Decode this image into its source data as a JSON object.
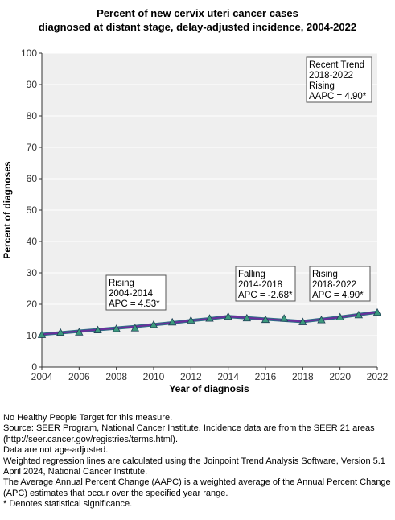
{
  "chart_data": {
    "type": "line",
    "title_line1": "Percent of new cervix uteri cancer cases",
    "title_line2": "diagnosed at distant stage, delay-adjusted incidence, 2004-2022",
    "xlabel": "Year of diagnosis",
    "ylabel": "Percent of diagnoses",
    "xlim": [
      2004,
      2022
    ],
    "ylim": [
      0,
      100
    ],
    "x_ticks": [
      2004,
      2006,
      2008,
      2010,
      2012,
      2014,
      2016,
      2018,
      2020,
      2022
    ],
    "y_ticks": [
      0,
      10,
      20,
      30,
      40,
      50,
      60,
      70,
      80,
      90,
      100
    ],
    "grid": "horizontal",
    "x": [
      2004,
      2005,
      2006,
      2007,
      2008,
      2009,
      2010,
      2011,
      2012,
      2013,
      2014,
      2015,
      2016,
      2017,
      2018,
      2019,
      2020,
      2021,
      2022
    ],
    "observed": [
      10.3,
      11.0,
      11.1,
      11.8,
      12.2,
      12.4,
      13.5,
      14.3,
      14.9,
      15.5,
      16.1,
      15.6,
      15.1,
      15.5,
      14.4,
      15.0,
      15.9,
      16.6,
      17.4
    ],
    "trend": [
      10.4,
      10.9,
      11.4,
      11.9,
      12.4,
      12.9,
      13.5,
      14.1,
      14.8,
      15.4,
      16.1,
      15.7,
      15.3,
      14.9,
      14.5,
      15.2,
      15.9,
      16.7,
      17.5
    ],
    "colors": {
      "trend_line": "#6a2f9c",
      "trend_edge": "#2f6d86",
      "marker_fill": "#3c9a7d",
      "marker_edge": "#1f3f55",
      "plot_bg": "#efefef",
      "grid": "#ffffff"
    },
    "annotations": [
      {
        "lines": [
          "Recent Trend",
          "2018-2022",
          "Rising",
          "AAPC = 4.90*"
        ]
      },
      {
        "lines": [
          "Rising",
          "2004-2014",
          "APC = 4.53*"
        ]
      },
      {
        "lines": [
          "Falling",
          "2014-2018",
          "APC = -2.68*"
        ]
      },
      {
        "lines": [
          "Rising",
          "2018-2022",
          "APC = 4.90*"
        ]
      }
    ]
  },
  "notes": [
    "No Healthy People Target for this measure.",
    "Source: SEER Program, National Cancer Institute. Incidence data are from the SEER 21 areas (http://seer.cancer.gov/registries/terms.html).",
    "Data are not age-adjusted.",
    "Weighted regression lines are calculated using the Joinpoint Trend Analysis Software, Version 5.1 April 2024, National Cancer Institute.",
    "The Average Annual Percent Change (AAPC) is a weighted average of the Annual Percent Change (APC) estimates that occur over the specified year range.",
    "* Denotes statistical significance."
  ]
}
